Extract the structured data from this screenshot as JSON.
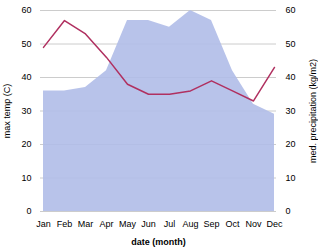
{
  "chart_data": {
    "type": "line",
    "categories": [
      "Jan",
      "Feb",
      "Mar",
      "Apr",
      "May",
      "Jun",
      "Jul",
      "Aug",
      "Sep",
      "Oct",
      "Nov",
      "Dec"
    ],
    "series": [
      {
        "type": "area",
        "axis": "y2",
        "color": "#b0bce8",
        "values": [
          36,
          36,
          37,
          42,
          57,
          57,
          55,
          60,
          57,
          42,
          32,
          29
        ]
      },
      {
        "type": "line",
        "color": "#b03060",
        "values": [
          49,
          57,
          53,
          46,
          38,
          35,
          35,
          36,
          39,
          36,
          33,
          43
        ]
      }
    ],
    "xlabel": "date (month)",
    "ylabel": "max temp (C)",
    "y2label": "med. precipitation (kg/m2)",
    "ylim": [
      0,
      60
    ],
    "yticks": [
      0,
      10,
      20,
      30,
      40,
      50,
      60
    ],
    "y2lim": [
      0,
      60
    ],
    "y2ticks": [
      0,
      10,
      20,
      30,
      40,
      50,
      60
    ],
    "grid": true
  }
}
